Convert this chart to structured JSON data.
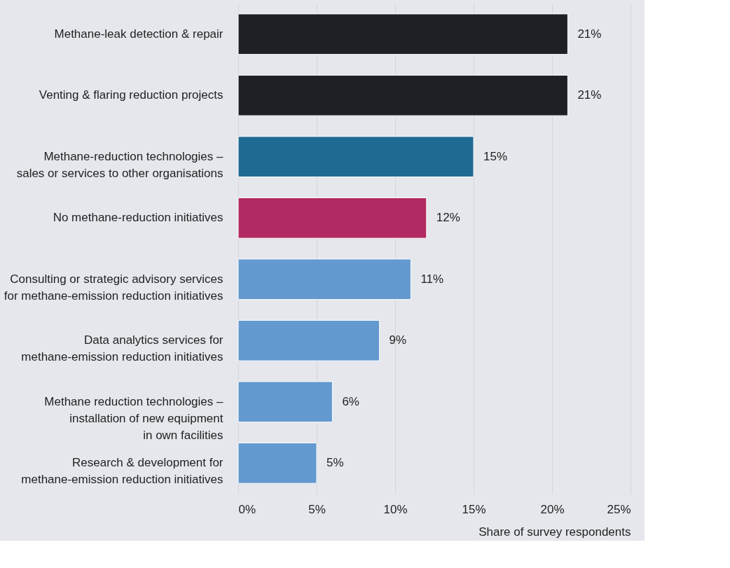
{
  "chart_data": {
    "type": "bar",
    "orientation": "horizontal",
    "xlabel": "Share of survey respondents",
    "categories": [
      "Methane-leak detection & repair",
      "Venting & flaring reduction projects",
      "Methane-reduction technologies –\nsales or services to other organisations",
      "No methane-reduction initiatives",
      "Consulting or strategic advisory services\nfor methane-emission reduction initiatives",
      "Data analytics services for\nmethane-emission reduction initiatives",
      "Methane reduction technologies –\ninstallation of new equipment\nin own facilities",
      "Research & development for\nmethane-emission reduction initiatives"
    ],
    "values": [
      21,
      21,
      15,
      12,
      11,
      9,
      6,
      5
    ],
    "value_labels": [
      "21%",
      "21%",
      "15%",
      "12%",
      "11%",
      "9%",
      "6%",
      "5%"
    ],
    "colors": [
      "#1f2026",
      "#1f2026",
      "#1f6a92",
      "#b22a62",
      "#6399cf",
      "#6399cf",
      "#6399cf",
      "#6399cf"
    ],
    "xlim": [
      0,
      25
    ],
    "xticks": [
      {
        "value": 0,
        "label": "0%"
      },
      {
        "value": 5,
        "label": "5%"
      },
      {
        "value": 10,
        "label": "10%"
      },
      {
        "value": 15,
        "label": "15%"
      },
      {
        "value": 20,
        "label": "20%"
      },
      {
        "value": 25,
        "label": "25%"
      }
    ],
    "grid": "x"
  }
}
